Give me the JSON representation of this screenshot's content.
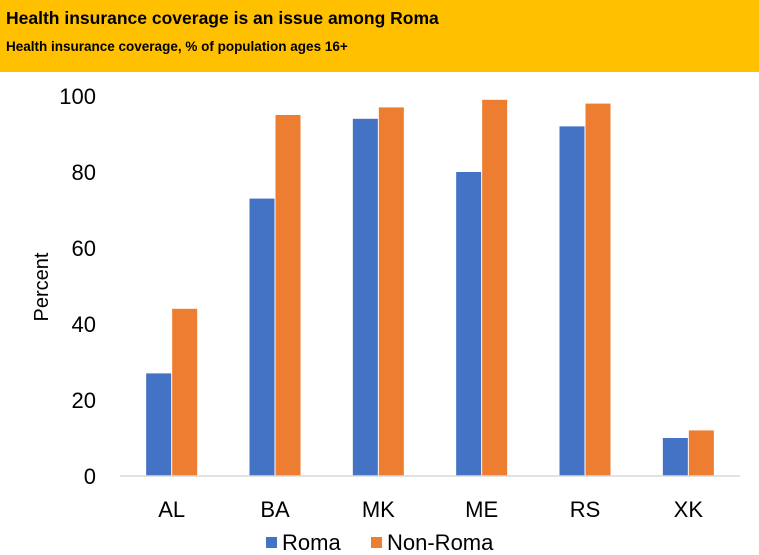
{
  "header": {
    "title": "Health insurance coverage is an issue among Roma",
    "subtitle": "Health insurance coverage, % of population ages 16+"
  },
  "chart_data": {
    "type": "bar",
    "categories": [
      "AL",
      "BA",
      "MK",
      "ME",
      "RS",
      "XK"
    ],
    "series": [
      {
        "name": "Roma",
        "color": "#4472c4",
        "values": [
          27,
          73,
          94,
          80,
          92,
          10
        ]
      },
      {
        "name": "Non-Roma",
        "color": "#ed7d31",
        "values": [
          44,
          95,
          97,
          99,
          98,
          12
        ]
      }
    ],
    "xlabel": "",
    "ylabel": "Percent",
    "ylim": [
      0,
      100
    ],
    "yticks": [
      0,
      20,
      40,
      60,
      80,
      100
    ],
    "grid": false,
    "legend": "bottom"
  }
}
